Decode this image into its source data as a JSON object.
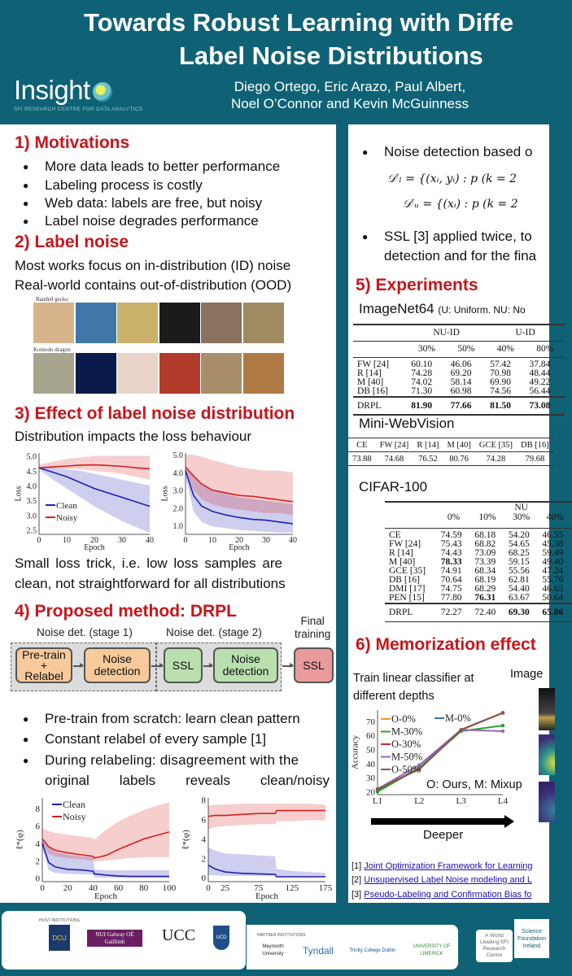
{
  "header": {
    "title_line1": "Towards Robust Learning with Diffe",
    "title_line2": "Label Noise Distributions",
    "authors_line1": "Diego Ortego, Eric Arazo, Paul Albert,",
    "authors_line2": "Noel O’Connor and Kevin McGuinness",
    "logo_text": "Insight",
    "logo_subtitle": "SFI RESEARCH CENTRE FOR DATA ANALYTICS"
  },
  "colors": {
    "background": "#0f6275",
    "heading": "#c8151b",
    "clean": "#1f1fb4",
    "noisy": "#d42020"
  },
  "left": {
    "s1_title": "1) Motivations",
    "s1_bullets": [
      "More data leads to better performance",
      "Labeling process is costly",
      "Web data: labels are free, but noisy",
      "Label noise degrades performance"
    ],
    "s2_title": "2) Label noise",
    "s2_lines": [
      "Most works focus on in-distribution (ID) noise",
      "Real-world contains out-of-distribution (OOD)"
    ],
    "image_row_labels": [
      "Banded gecko",
      "Komodo dragon"
    ],
    "s3_title": "3) Effect of label noise distribution",
    "s3_line": "Distribution impacts the loss behaviour",
    "s3_after": [
      "Small loss trick, i.e. low loss samples are",
      "clean, not straightforward for all distributions"
    ],
    "s4_title": "4) Proposed method: DRPL",
    "diagram": {
      "stage1": "Noise det. (stage 1)",
      "stage2": "Noise det. (stage 2)",
      "final": [
        "Final",
        "training"
      ],
      "boxes": [
        [
          "Pre-train",
          "+",
          "Relabel"
        ],
        [
          "Noise",
          "detection"
        ],
        [
          "SSL"
        ],
        [
          "Noise",
          "detection"
        ],
        [
          "SSL"
        ]
      ]
    },
    "s4_bullets": [
      "Pre-train from scratch: learn clean pattern",
      "Constant relabel of every sample [1]",
      "During relabeling: disagreement with the"
    ],
    "s4_bullet_cont": [
      "original",
      "labels",
      "reveals",
      "clean/noisy"
    ]
  },
  "right": {
    "bullet1": "Noise detection based o",
    "eq1": "𝒟′ₗ = {(xᵢ, yᵢ) : p (k = 2",
    "eq2": "𝒟′ᵤ = {(xᵢ) : p (k = 2",
    "bullet2": [
      "SSL [3] applied twice, to",
      "detection and for the fina"
    ],
    "s5_title": "5) Experiments",
    "imagenet_title": "ImageNet64",
    "imagenet_note": "(U: Uniform. NU: No",
    "imagenet_table": {
      "groups": [
        "NU-ID",
        "U-ID"
      ],
      "cols": [
        "30%",
        "50%",
        "40%",
        "80%"
      ],
      "rows": [
        [
          "FW [24]",
          "60.10",
          "46.06",
          "57.42",
          "37.84"
        ],
        [
          "R [14]",
          "74.28",
          "69.20",
          "70.98",
          "48.44"
        ],
        [
          "M [40]",
          "74.02",
          "58.14",
          "69.90",
          "49.22"
        ],
        [
          "DB [16]",
          "71.30",
          "60.98",
          "74.56",
          "56.44"
        ]
      ],
      "final": [
        "DRPL",
        "81.90",
        "77.66",
        "81.50",
        "73.08"
      ]
    },
    "webvision_title": "Mini-WebVision",
    "webvision_table": {
      "cols": [
        "CE",
        "FW [24]",
        "R [14]",
        "M [40]",
        "GCE [35]",
        "DB [16]"
      ],
      "values": [
        "73.88",
        "74.68",
        "76.52",
        "80.76",
        "74.28",
        "79.68"
      ]
    },
    "cifar_title": "CIFAR-100",
    "cifar_table": {
      "group": "NU",
      "cols": [
        "0%",
        "10%",
        "30%",
        "40%"
      ],
      "rows": [
        [
          "CE",
          "74.59",
          "68.18",
          "54.20",
          "46.55"
        ],
        [
          "FW [24]",
          "75.43",
          "68.82",
          "54.65",
          "45.38"
        ],
        [
          "R [14]",
          "74.43",
          "73.09",
          "68.25",
          "59.49"
        ],
        [
          "M [40]",
          "78.33",
          "73.39",
          "59.15",
          "49.40"
        ],
        [
          "GCE [35]",
          "74.91",
          "68.34",
          "55.56",
          "47.24"
        ],
        [
          "DB [16]",
          "70.64",
          "68.19",
          "62.81",
          "55.76"
        ],
        [
          "DMI [17]",
          "74.75",
          "68.29",
          "54.40",
          "46.65"
        ],
        [
          "PEN [15]",
          "77.80",
          "76.31",
          "63.67",
          "50.64"
        ]
      ],
      "final": [
        "DRPL",
        "72.27",
        "72.40",
        "69.30",
        "65.86"
      ]
    },
    "s6_title": "6) Memorization effect",
    "s6_text": [
      "Train linear classifier at",
      "different depths"
    ],
    "s6_image_label": "Image",
    "s6_note": "O: Ours, M: Mixup",
    "s6_deeper": "Deeper",
    "refs": [
      {
        "num": "[1]",
        "text": "Joint Optimization Framework for Learning"
      },
      {
        "num": "[2]",
        "text": "Unsupervised Label Noise modeling and L"
      },
      {
        "num": "[3]",
        "text": "Pseudo-Labeling and Confirmation Bias fo"
      }
    ]
  },
  "footer": {
    "host_label": "HOST INSTITUTIONS",
    "hosts": [
      "DCU",
      "NUI Galway OÉ Gaillimh",
      "UCC",
      "UCD"
    ],
    "partner_label": "PARTNER INSTITUTIONS",
    "partners": [
      "Maynooth University",
      "Tyndall",
      "Trinity College Dublin",
      "UNIVERSITY OF LIMERICK"
    ],
    "sfi_tag": "A World Leading SFI Research Centre",
    "sfi": "Science Foundation Ireland"
  },
  "chart_data": [
    {
      "type": "line",
      "id": "loss-id",
      "xlabel": "Epoch",
      "ylabel": "Loss",
      "xlim": [
        0,
        40
      ],
      "ylim": [
        2.35,
        5.1
      ],
      "xticks": [
        0,
        10,
        20,
        30,
        40
      ],
      "yticks": [
        2.5,
        3.0,
        3.5,
        4.0,
        4.5,
        5.0
      ],
      "ytick_fmt": 1,
      "legend": "bottom-left",
      "x": [
        0,
        5,
        10,
        15,
        20,
        25,
        30,
        35,
        40
      ],
      "series": [
        {
          "name": "Clean",
          "color": "#1f1fb4",
          "values": [
            4.6,
            4.45,
            4.3,
            4.1,
            3.9,
            3.75,
            3.6,
            3.45,
            3.3
          ],
          "lower": [
            4.55,
            4.2,
            3.9,
            3.6,
            3.3,
            3.05,
            2.8,
            2.6,
            2.4
          ],
          "upper": [
            4.6,
            4.6,
            4.55,
            4.5,
            4.4,
            4.3,
            4.2,
            4.1,
            4.0
          ]
        },
        {
          "name": "Noisy",
          "color": "#d42020",
          "values": [
            4.6,
            4.63,
            4.66,
            4.69,
            4.7,
            4.68,
            4.65,
            4.6,
            4.57
          ],
          "lower": [
            4.58,
            4.58,
            4.57,
            4.55,
            4.5,
            4.45,
            4.4,
            4.3,
            4.2
          ],
          "upper": [
            4.7,
            4.8,
            4.9,
            4.95,
            5.0,
            5.0,
            5.0,
            5.0,
            5.0
          ]
        }
      ]
    },
    {
      "type": "line",
      "id": "loss-ood",
      "xlabel": "Epoch",
      "ylabel": "Loss",
      "xlim": [
        0,
        40
      ],
      "ylim": [
        0.5,
        5.1
      ],
      "xticks": [
        0,
        10,
        20,
        30,
        40
      ],
      "yticks": [
        1.0,
        2.0,
        3.0,
        4.0,
        5.0
      ],
      "ytick_fmt": 1,
      "legend": "none",
      "x": [
        0,
        3,
        6,
        10,
        15,
        20,
        25,
        30,
        35,
        40
      ],
      "series": [
        {
          "name": "Clean",
          "color": "#1f1fb4",
          "values": [
            4.1,
            2.7,
            2.1,
            1.8,
            1.6,
            1.45,
            1.35,
            1.3,
            1.2,
            1.1
          ],
          "lower": [
            3.8,
            1.8,
            1.2,
            0.95,
            0.85,
            0.75,
            0.7,
            0.65,
            0.6,
            0.6
          ],
          "upper": [
            4.4,
            3.8,
            3.3,
            3.0,
            2.8,
            2.6,
            2.5,
            2.4,
            2.3,
            2.2
          ]
        },
        {
          "name": "Noisy",
          "color": "#d42020",
          "values": [
            4.3,
            3.8,
            3.35,
            3.0,
            2.85,
            2.7,
            2.65,
            2.55,
            2.45,
            2.35
          ],
          "lower": [
            4.0,
            3.0,
            2.5,
            2.2,
            2.0,
            1.9,
            1.8,
            1.7,
            1.7,
            1.6
          ],
          "upper": [
            5.0,
            5.0,
            4.9,
            4.7,
            4.5,
            4.3,
            4.2,
            4.1,
            4.1,
            4.0
          ]
        }
      ]
    },
    {
      "type": "line",
      "id": "relabel-id",
      "xlabel": "Epoch",
      "ylabel": "ℓ*(φ)",
      "xlim": [
        0,
        100
      ],
      "ylim": [
        -0.4,
        9.2
      ],
      "xticks": [
        0,
        20,
        40,
        60,
        80,
        100
      ],
      "yticks": [
        0,
        2,
        4,
        6,
        8
      ],
      "ytick_fmt": 0,
      "legend": "top-left",
      "x": [
        0,
        5,
        10,
        20,
        30,
        40,
        41,
        50,
        60,
        70,
        80,
        90,
        100
      ],
      "series": [
        {
          "name": "Clean",
          "color": "#1f1fb4",
          "values": [
            4.0,
            1.8,
            1.3,
            1.0,
            0.95,
            0.8,
            0.5,
            0.35,
            0.25,
            0.2,
            0.2,
            0.2,
            0.2
          ],
          "lower": [
            3.5,
            0.9,
            0.6,
            0.5,
            0.45,
            0.4,
            0.1,
            0.05,
            0.05,
            0.05,
            0.05,
            0.05,
            0.05
          ],
          "upper": [
            4.5,
            3.5,
            3.0,
            2.7,
            2.5,
            2.4,
            1.0,
            0.9,
            0.9,
            0.9,
            0.9,
            0.9,
            0.9
          ]
        },
        {
          "name": "Noisy",
          "color": "#d42020",
          "values": [
            4.5,
            3.6,
            3.2,
            2.9,
            2.7,
            2.5,
            2.3,
            2.6,
            3.3,
            3.9,
            4.5,
            4.9,
            5.3
          ],
          "lower": [
            4.0,
            2.8,
            2.5,
            2.3,
            2.2,
            2.0,
            1.9,
            2.0,
            2.2,
            2.3,
            2.4,
            2.4,
            2.4
          ],
          "upper": [
            5.7,
            5.4,
            5.2,
            5.0,
            4.8,
            4.6,
            4.4,
            5.5,
            6.5,
            7.2,
            7.8,
            8.3,
            8.7
          ]
        }
      ]
    },
    {
      "type": "line",
      "id": "relabel-ood",
      "xlabel": "Epoch",
      "ylabel": "ℓ*(φ)",
      "xlim": [
        0,
        175
      ],
      "ylim": [
        -0.4,
        8.2
      ],
      "xticks": [
        0,
        25,
        75,
        125,
        175
      ],
      "yticks": [
        0,
        2,
        4,
        6,
        8
      ],
      "ytick_fmt": 0,
      "legend": "none",
      "x": [
        0,
        10,
        25,
        50,
        75,
        100,
        102,
        125,
        150,
        175
      ],
      "series": [
        {
          "name": "Clean",
          "color": "#1f1fb4",
          "values": [
            1.3,
            0.9,
            0.6,
            0.45,
            0.4,
            0.35,
            0.1,
            0.1,
            0.1,
            0.1
          ],
          "lower": [
            0.3,
            0.25,
            0.2,
            0.2,
            0.2,
            0.2,
            0.05,
            0.05,
            0.05,
            0.05
          ],
          "upper": [
            3.1,
            2.8,
            2.5,
            2.4,
            2.3,
            2.2,
            0.9,
            0.7,
            0.6,
            0.5
          ]
        },
        {
          "name": "Noisy",
          "color": "#d42020",
          "values": [
            6.3,
            6.4,
            6.4,
            6.5,
            6.6,
            6.6,
            6.9,
            6.9,
            6.9,
            6.9
          ],
          "lower": [
            5.0,
            5.2,
            5.3,
            5.4,
            5.5,
            5.5,
            5.8,
            5.8,
            5.9,
            5.9
          ],
          "upper": [
            7.4,
            7.5,
            7.5,
            7.6,
            7.6,
            7.6,
            7.6,
            7.6,
            7.6,
            7.5
          ]
        }
      ]
    },
    {
      "type": "line",
      "id": "memorization",
      "xlabel": "",
      "ylabel": "Accuracy",
      "xlim": [
        0,
        3
      ],
      "ylim": [
        18,
        78
      ],
      "xticks": [
        "L1",
        "L2",
        "L3",
        "L4"
      ],
      "yticks": [
        20,
        30,
        40,
        50,
        60,
        70
      ],
      "ytick_fmt": 0,
      "legend": "top-left",
      "x": [
        0,
        1,
        2,
        3
      ],
      "series": [
        {
          "name": "O-0%",
          "color": "#f39a1e",
          "values": [
            22,
            36,
            64,
            76
          ]
        },
        {
          "name": "M-0%",
          "color": "#2a78b5",
          "values": [
            21,
            37,
            64,
            76
          ]
        },
        {
          "name": "M-30%",
          "color": "#2ca02c",
          "values": [
            20,
            37,
            63,
            67
          ]
        },
        {
          "name": "O-30%",
          "color": "#d62728",
          "values": [
            22,
            36,
            64,
            76
          ],
          "dotted": true
        },
        {
          "name": "M-50%",
          "color": "#9467bd",
          "values": [
            22,
            39,
            64,
            63
          ]
        },
        {
          "name": "O-50%",
          "color": "#8c564b",
          "values": [
            22,
            36,
            64,
            76
          ]
        }
      ]
    }
  ]
}
